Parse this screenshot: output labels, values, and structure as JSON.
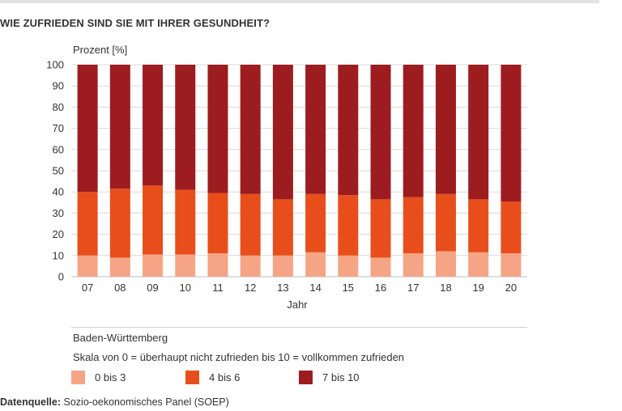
{
  "title": "WIE ZUFRIEDEN SIND SIE MIT IHRER GESUNDHEIT?",
  "source": {
    "label": "Datenquelle:",
    "text": "Sozio-oekonomisches Panel (SOEP)"
  },
  "notes": {
    "region": "Baden-Württemberg",
    "scale": "Skala von 0 = überhaupt nicht zufrieden bis 10 = vollkommen zufrieden"
  },
  "legend": [
    {
      "label": "0 bis 3",
      "color": "#f5a585"
    },
    {
      "label": "4 bis 6",
      "color": "#e84e1b"
    },
    {
      "label": "7 bis 10",
      "color": "#9d1c20"
    }
  ],
  "chart_data": {
    "type": "bar",
    "stacked": true,
    "ylabel": "Prozent [%]",
    "xlabel": "Jahr",
    "ylim": [
      0,
      100
    ],
    "yticks": [
      0,
      10,
      20,
      30,
      40,
      50,
      60,
      70,
      80,
      90,
      100
    ],
    "grid": true,
    "legend_position": "bottom",
    "categories": [
      "07",
      "08",
      "09",
      "10",
      "11",
      "12",
      "13",
      "14",
      "15",
      "16",
      "17",
      "18",
      "19",
      "20"
    ],
    "series": [
      {
        "name": "0 bis 3",
        "color": "#f5a585",
        "values": [
          10,
          9,
          10.5,
          10.5,
          11,
          10,
          10,
          11.5,
          10,
          9,
          11,
          12,
          11.5,
          11
        ]
      },
      {
        "name": "4 bis 6",
        "color": "#e84e1b",
        "values": [
          30,
          32.5,
          32.5,
          30.5,
          28.5,
          29,
          26.5,
          27.5,
          28.5,
          27.5,
          26.5,
          27,
          25,
          24.5
        ]
      },
      {
        "name": "7 bis 10",
        "color": "#9d1c20",
        "values": [
          60,
          58.5,
          57,
          59,
          60.5,
          61,
          63.5,
          61,
          61.5,
          63.5,
          62.5,
          61,
          63.5,
          64.5
        ]
      }
    ]
  }
}
